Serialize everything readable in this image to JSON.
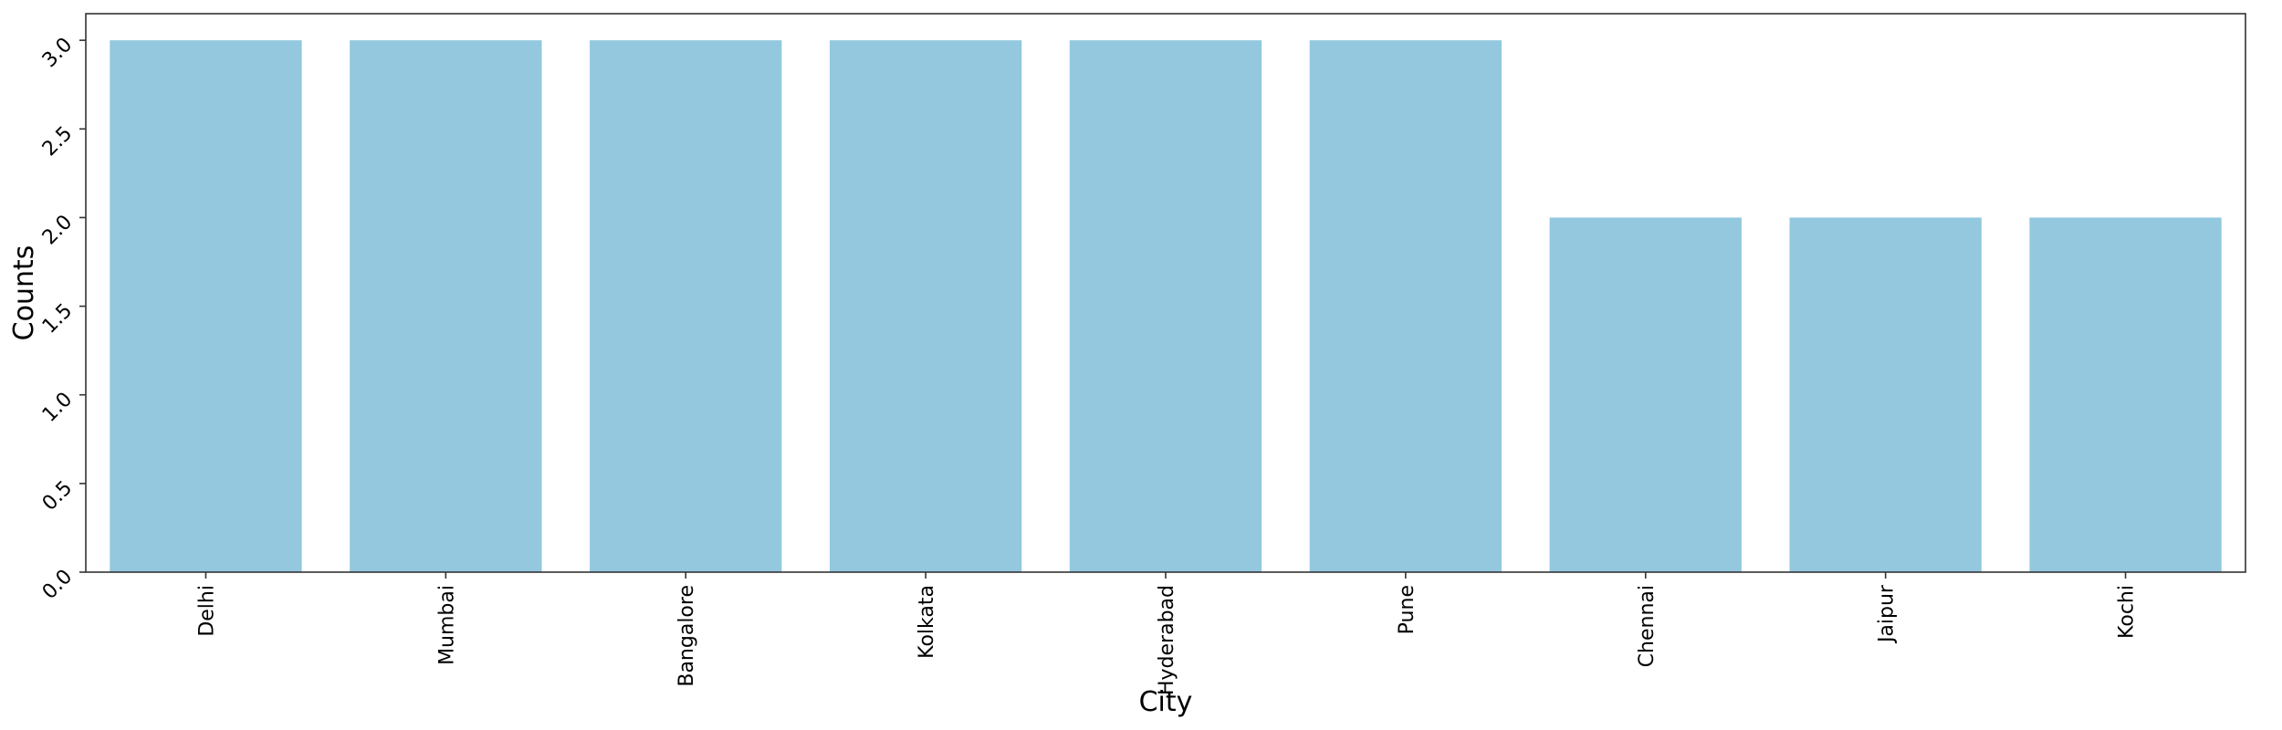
{
  "chart_data": {
    "type": "bar",
    "title": "",
    "xlabel": "City",
    "ylabel": "Counts",
    "categories": [
      "Delhi",
      "Mumbai",
      "Bangalore",
      "Kolkata",
      "Hyderabad",
      "Pune",
      "Chennai",
      "Jaipur",
      "Kochi"
    ],
    "values": [
      3,
      3,
      3,
      3,
      3,
      3,
      2,
      2,
      2
    ],
    "ylim": [
      0,
      3.15
    ],
    "yticks": [
      "0.0",
      "0.5",
      "1.0",
      "1.5",
      "2.0",
      "2.5",
      "3.0"
    ],
    "grid": false,
    "legend": "none",
    "bar_color": "#93c8df",
    "axis_color": "#333333"
  }
}
